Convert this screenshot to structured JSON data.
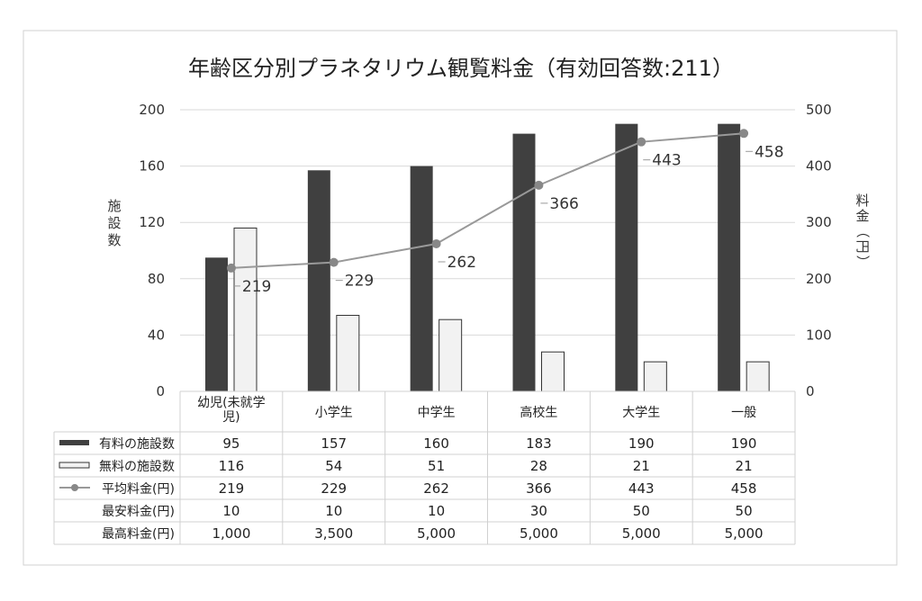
{
  "chart_data": {
    "type": "bar",
    "title": "年齢区分別プラネタリウム観覧料金（有効回答数:211）",
    "categories": [
      "幼児(未就学児)",
      "小学生",
      "中学生",
      "高校生",
      "大学生",
      "一般"
    ],
    "category_lines": [
      [
        "幼児(未就学",
        "児)"
      ],
      [
        "小学生"
      ],
      [
        "中学生"
      ],
      [
        "高校生"
      ],
      [
        "大学生"
      ],
      [
        "一般"
      ]
    ],
    "ylabel": "施設数",
    "ylabel_right": "料金（円）",
    "ylim": [
      0,
      200
    ],
    "yticks": [
      0,
      40,
      80,
      120,
      160,
      200
    ],
    "ylim_right": [
      0,
      500
    ],
    "yticks_right": [
      0,
      100,
      200,
      300,
      400,
      500
    ],
    "grid": true,
    "series": [
      {
        "name": "有料の施設数",
        "type": "bar",
        "axis": "left",
        "color": "#404040",
        "values": [
          95,
          157,
          160,
          183,
          190,
          190
        ]
      },
      {
        "name": "無料の施設数",
        "type": "bar",
        "axis": "left",
        "color": "#f2f2f2",
        "values": [
          116,
          54,
          51,
          28,
          21,
          21
        ]
      },
      {
        "name": "平均料金(円)",
        "type": "line",
        "axis": "right",
        "color": "#999999",
        "values": [
          219,
          229,
          262,
          366,
          443,
          458
        ]
      }
    ],
    "table_rows": [
      {
        "label": "有料の施設数",
        "marker": "dark-bar",
        "cells": [
          "95",
          "157",
          "160",
          "183",
          "190",
          "190"
        ]
      },
      {
        "label": "無料の施設数",
        "marker": "light-bar",
        "cells": [
          "116",
          "54",
          "51",
          "28",
          "21",
          "21"
        ]
      },
      {
        "label": "平均料金(円)",
        "marker": "line",
        "cells": [
          "219",
          "229",
          "262",
          "366",
          "443",
          "458"
        ]
      },
      {
        "label": "最安料金(円)",
        "marker": "none",
        "cells": [
          "10",
          "10",
          "10",
          "30",
          "50",
          "50"
        ]
      },
      {
        "label": "最高料金(円)",
        "marker": "none",
        "cells": [
          "1,000",
          "3,500",
          "5,000",
          "5,000",
          "5,000",
          "5,000"
        ]
      }
    ]
  }
}
